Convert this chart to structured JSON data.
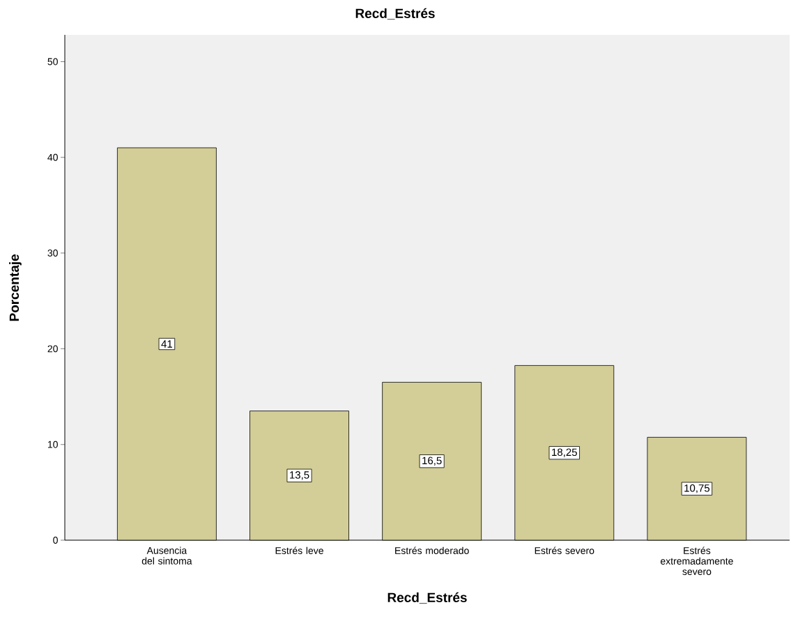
{
  "chart_data": {
    "type": "bar",
    "title": "Recd_Estrés",
    "xlabel": "Recd_Estrés",
    "ylabel": "Porcentaje",
    "categories": [
      "Ausencia del sintoma",
      "Estrés leve",
      "Estrés moderado",
      "Estrés severo",
      "Estrés extremadamente severo"
    ],
    "values": [
      41,
      13.5,
      16.5,
      18.25,
      10.75
    ],
    "value_labels": [
      "41",
      "13,5",
      "16,5",
      "18,25",
      "10,75"
    ],
    "color": "#d3ce97",
    "ylim": [
      0,
      52.8
    ],
    "yticks": [
      0,
      10,
      20,
      30,
      40,
      50
    ],
    "grid": false
  }
}
